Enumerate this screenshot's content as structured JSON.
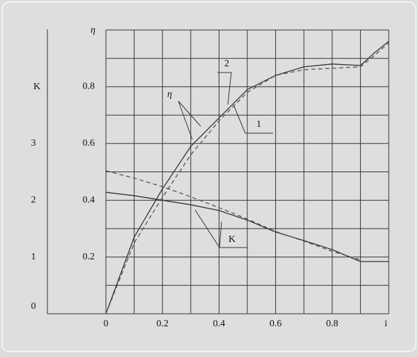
{
  "chart_data": {
    "type": "line",
    "xlabel": "i",
    "ylabel": "η",
    "y2label": "K",
    "x": [
      0,
      0.1,
      0.2,
      0.3,
      0.4,
      0.5,
      0.6,
      0.7,
      0.8,
      0.9,
      0.95,
      1.0
    ],
    "xlim": [
      0,
      1.0
    ],
    "xticks": [
      0,
      0.2,
      0.4,
      0.6,
      0.8
    ],
    "xticks_minor": [
      0.1,
      0.3,
      0.5,
      0.7,
      0.9,
      1.0
    ],
    "ylim": [
      0,
      1.0
    ],
    "yticks": [
      0.2,
      0.4,
      0.6,
      0.8
    ],
    "yticks_minor": [
      0.1,
      0.3,
      0.5,
      0.7,
      0.9,
      1.0
    ],
    "y2lim": [
      0,
      5
    ],
    "y2ticks": [
      0,
      1,
      2,
      3
    ],
    "grid": true,
    "series": [
      {
        "name": "1",
        "color": "#333333",
        "dash": false,
        "values": [
          0,
          0.27,
          0.44,
          0.59,
          0.69,
          0.79,
          0.84,
          0.87,
          0.88,
          0.875,
          0.92,
          0.96
        ]
      },
      {
        "name": "2",
        "color": "#555555",
        "dash": true,
        "values": [
          0,
          0.25,
          0.41,
          0.56,
          0.68,
          0.78,
          0.84,
          0.86,
          0.865,
          0.87,
          0.91,
          0.955
        ]
      },
      {
        "color": "#333333",
        "dash": false,
        "axis": "y2",
        "values": [
          2.14,
          2.08,
          2.0,
          1.92,
          1.82,
          1.65,
          1.44,
          1.29,
          1.13,
          0.92,
          0.92,
          0.92
        ]
      },
      {
        "color": "#555555",
        "dash": true,
        "axis": "y2",
        "values": [
          2.52,
          2.39,
          2.24,
          2.06,
          1.87,
          1.67,
          1.45,
          1.28,
          1.1,
          0.95,
          null,
          null
        ]
      }
    ],
    "annotations": [
      "η",
      "K"
    ]
  }
}
